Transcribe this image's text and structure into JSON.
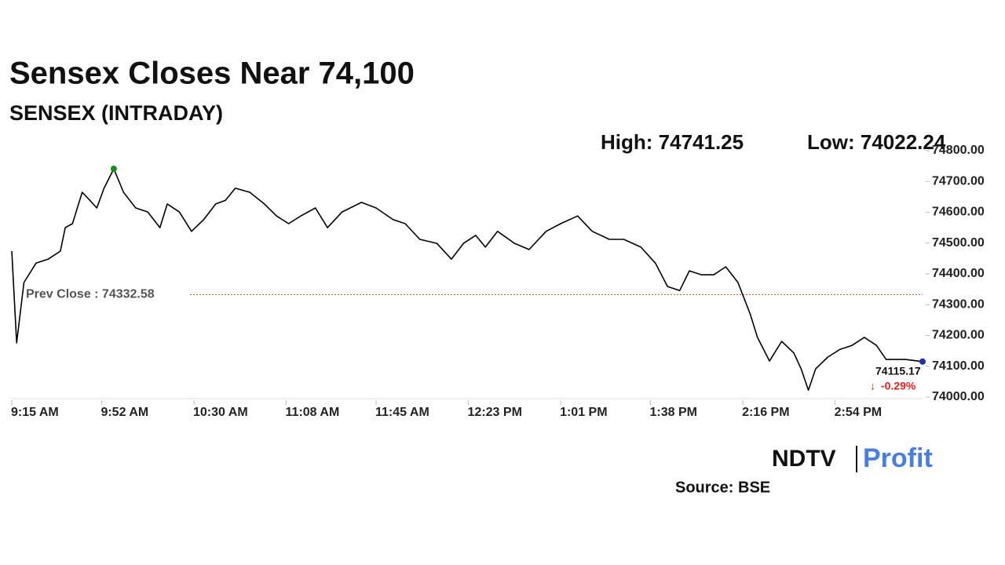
{
  "chart_data": {
    "type": "line",
    "title": "Sensex Closes Near 74,100",
    "subtitle": "SENSEX (INTRADAY)",
    "high": {
      "value": 74741.25,
      "label": "High: 74741.25"
    },
    "low": {
      "value": 74022.24,
      "label": "Low: 74022.24"
    },
    "prev_close": {
      "value": 74332.58,
      "label": "Prev Close : 74332.58"
    },
    "last_label": "74115.17",
    "change_label": "-0.29%",
    "x": [
      "9:15 AM",
      "9:17 AM",
      "9:20 AM",
      "9:25 AM",
      "9:30 AM",
      "9:35 AM",
      "9:37 AM",
      "9:40 AM",
      "9:44 AM",
      "9:47 AM",
      "9:50 AM",
      "9:53 AM",
      "9:57 AM",
      "10:01 AM",
      "10:06 AM",
      "10:11 AM",
      "10:16 AM",
      "10:19 AM",
      "10:24 AM",
      "10:29 AM",
      "10:34 AM",
      "10:39 AM",
      "10:43 AM",
      "10:47 AM",
      "10:53 AM",
      "10:59 AM",
      "11:04 AM",
      "11:09 AM",
      "11:14 AM",
      "11:20 AM",
      "11:25 AM",
      "11:31 AM",
      "11:39 AM",
      "11:45 AM",
      "11:52 AM",
      "11:57 AM",
      "12:03 PM",
      "12:10 PM",
      "12:16 PM",
      "12:21 PM",
      "12:26 PM",
      "12:30 PM",
      "12:35 PM",
      "12:42 PM",
      "12:48 PM",
      "12:55 PM",
      "1:01 PM",
      "1:08 PM",
      "1:14 PM",
      "1:21 PM",
      "1:27 PM",
      "1:34 PM",
      "1:40 PM",
      "1:45 PM",
      "1:50 PM",
      "1:54 PM",
      "1:59 PM",
      "2:04 PM",
      "2:09 PM",
      "2:14 PM",
      "2:19 PM",
      "2:22 PM",
      "2:27 PM",
      "2:32 PM",
      "2:37 PM",
      "2:40 PM",
      "2:43 PM",
      "2:46 PM",
      "2:51 PM",
      "2:56 PM",
      "3:01 PM",
      "3:06 PM",
      "3:11 PM",
      "3:15 PM",
      "3:23 PM",
      "3:30 PM"
    ],
    "series": [
      {
        "name": "SENSEX",
        "color": "#000000",
        "values": [
          74474,
          74176,
          74372,
          74435,
          74448,
          74474,
          74550,
          74563,
          74665,
          74640,
          74614,
          74678,
          74741.25,
          74665,
          74614,
          74601,
          74550,
          74627,
          74601,
          74538,
          74576,
          74627,
          74639,
          74678,
          74665,
          74627,
          74588,
          74563,
          74588,
          74614,
          74550,
          74601,
          74632,
          74614,
          74576,
          74563,
          74512,
          74499,
          74448,
          74499,
          74525,
          74487,
          74538,
          74499,
          74479,
          74538,
          74563,
          74588,
          74538,
          74512,
          74512,
          74487,
          74435,
          74359,
          74346,
          74410,
          74397,
          74397,
          74423,
          74372,
          74270,
          74194,
          74117,
          74181,
          74143,
          74092,
          74022.24,
          74092,
          74130,
          74155,
          74168,
          74194,
          74168,
          74122,
          74122,
          74115.17
        ]
      }
    ],
    "xlim": [
      "9:15 AM",
      "3:30 PM"
    ],
    "xticks": [
      "9:15 AM",
      "9:52 AM",
      "10:30 AM",
      "11:08 AM",
      "11:45 AM",
      "12:23 PM",
      "1:01 PM",
      "1:38 PM",
      "2:16 PM",
      "2:54 PM"
    ],
    "ylim": [
      74000,
      74800
    ],
    "yticks": [
      {
        "value": 74000,
        "label": "74000.00"
      },
      {
        "value": 74100,
        "label": "74100.00"
      },
      {
        "value": 74200,
        "label": "74200.00"
      },
      {
        "value": 74300,
        "label": "74300.00"
      },
      {
        "value": 74400,
        "label": "74400.00"
      },
      {
        "value": 74500,
        "label": "74500.00"
      },
      {
        "value": 74600,
        "label": "74600.00"
      },
      {
        "value": 74700,
        "label": "74700.00"
      },
      {
        "value": 74800,
        "label": "74800.00"
      }
    ],
    "prev_close_color": "#e04a3a",
    "high_color": "#1a8a1a",
    "last_color": "#1f2fa8",
    "grid": false
  },
  "logo": {
    "left": "NDTV",
    "right": "Profit"
  },
  "source": "Source: BSE"
}
